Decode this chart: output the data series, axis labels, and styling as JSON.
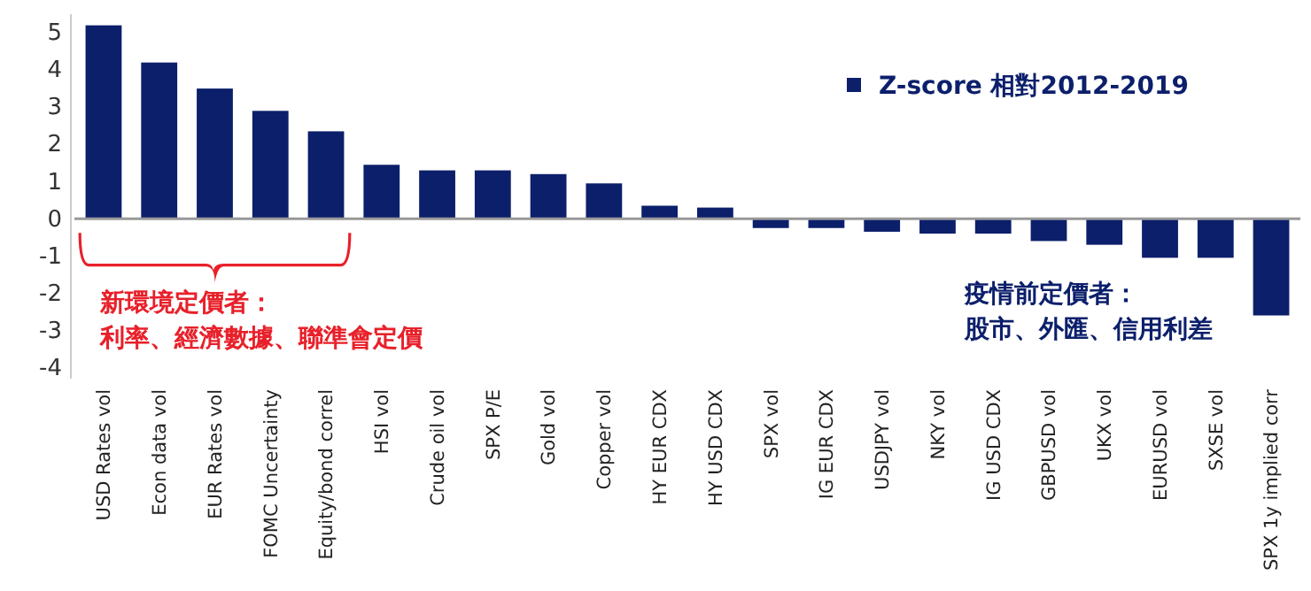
{
  "chart_data": {
    "type": "bar",
    "categories": [
      "USD Rates vol",
      "Econ data vol",
      "EUR Rates vol",
      "FOMC Uncertainty",
      "Equity/bond correl",
      "HSI vol",
      "Crude oil vol",
      "SPX P/E",
      "Gold vol",
      "Copper vol",
      "HY EUR CDX",
      "HY USD CDX",
      "SPX vol",
      "IG EUR CDX",
      "USDJPY vol",
      "NKY vol",
      "IG USD CDX",
      "GBPUSD vol",
      "UKX vol",
      "EURUSD vol",
      "SXSE vol",
      "SPX 1y implied corr"
    ],
    "series": [
      {
        "name": "Z-score 相對2012-2019",
        "color": "#0c1f6b",
        "values": [
          5.2,
          4.2,
          3.5,
          2.9,
          2.35,
          1.45,
          1.3,
          1.3,
          1.2,
          0.95,
          0.35,
          0.3,
          -0.25,
          -0.25,
          -0.35,
          -0.4,
          -0.4,
          -0.6,
          -0.7,
          -1.05,
          -1.05,
          -2.6
        ]
      }
    ],
    "ylim": [
      -4.3,
      5.5
    ],
    "yticks": [
      -4,
      -3,
      -2,
      -1,
      0,
      1,
      2,
      3,
      4,
      5
    ],
    "legend": "top right",
    "annotations": [
      "新環境定價者：",
      "利率、經濟數據、聯準會定價",
      "疫情前定價者：",
      "股市、外匯、信用利差"
    ]
  }
}
